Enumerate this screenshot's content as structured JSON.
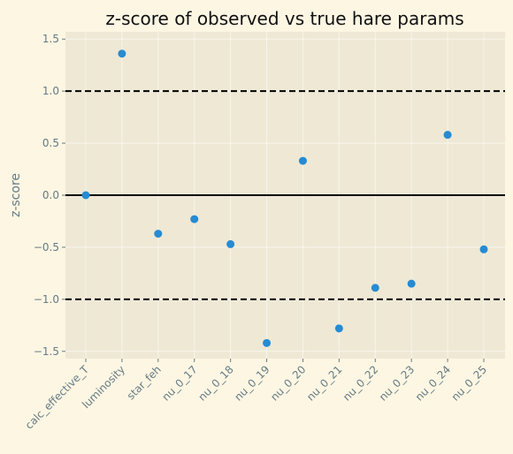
{
  "chart_data": {
    "type": "scatter",
    "title": "z-score of observed vs true hare params",
    "xlabel": "",
    "ylabel": "z-score",
    "categories": [
      "calc_effective_T",
      "luminosity",
      "star_feh",
      "nu_0_17",
      "nu_0_18",
      "nu_0_19",
      "nu_0_20",
      "nu_0_21",
      "nu_0_22",
      "nu_0_23",
      "nu_0_24",
      "nu_0_25"
    ],
    "series": [
      {
        "values": [
          0.0,
          1.36,
          -0.37,
          -0.23,
          -0.47,
          -1.42,
          0.33,
          -1.28,
          -0.89,
          -0.85,
          0.58,
          -0.52
        ]
      }
    ],
    "ylim": [
      -1.57,
      1.57
    ],
    "yticks": [
      -1.5,
      -1.0,
      -0.5,
      0.0,
      0.5,
      1.0,
      1.5
    ],
    "ytick_labels": [
      "−1.5",
      "−1.0",
      "−0.5",
      "0.0",
      "0.5",
      "1.0",
      "1.5"
    ],
    "reference_lines": [
      {
        "y": 0,
        "style": "solid"
      },
      {
        "y": 1,
        "style": "dashed"
      },
      {
        "y": -1,
        "style": "dashed"
      }
    ],
    "grid": true,
    "colors": {
      "figure_background": "#fdf6e3",
      "plot_background": "#eee8d5",
      "point": "#268bd2",
      "reference_line": "#000000",
      "tick_text": "#657b83"
    }
  }
}
